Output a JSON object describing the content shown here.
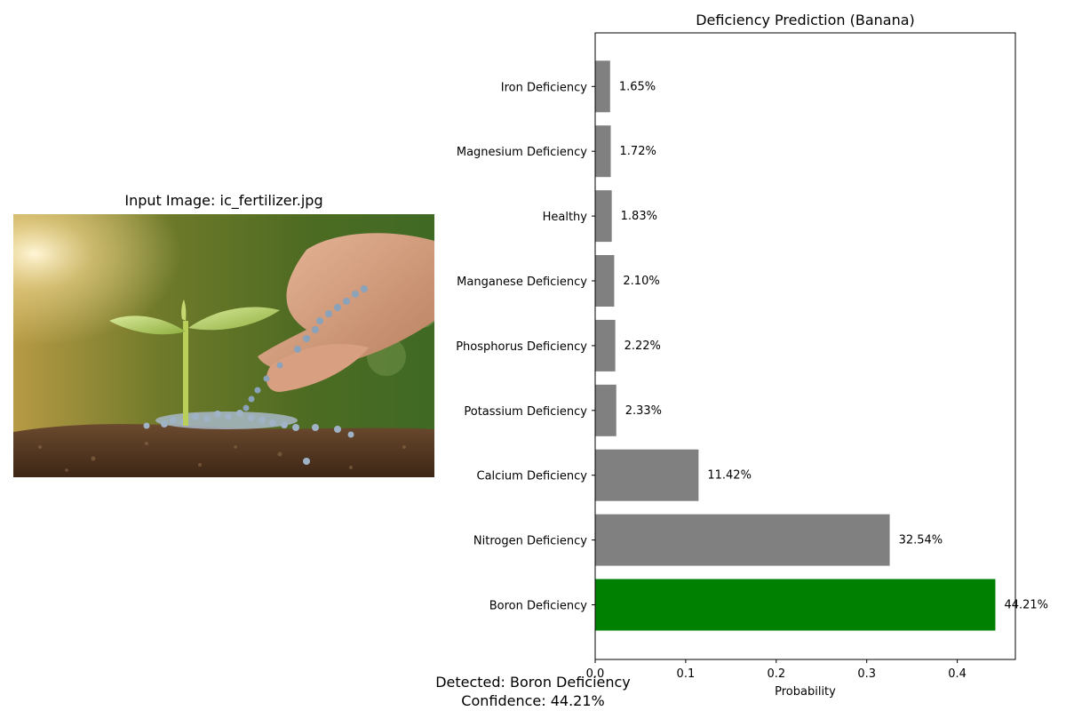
{
  "left_panel": {
    "title": "Input Image: ic_fertilizer.jpg",
    "image_description_icon": "seedling-fertilizer-photo"
  },
  "footer": {
    "detected": "Detected: Boron Deficiency",
    "confidence": "Confidence: 44.21%"
  },
  "chart_data": {
    "type": "bar",
    "orientation": "horizontal",
    "title": "Deficiency Prediction (Banana)",
    "xlabel": "Probability",
    "ylabel": "",
    "xlim": [
      0,
      0.4642
    ],
    "xticks": [
      "0.0",
      "0.1",
      "0.2",
      "0.3",
      "0.4"
    ],
    "xtick_values": [
      0,
      0.1,
      0.2,
      0.3,
      0.4
    ],
    "grid": false,
    "categories": [
      "Boron Deficiency",
      "Nitrogen Deficiency",
      "Calcium Deficiency",
      "Potassium Deficiency",
      "Phosphorus Deficiency",
      "Manganese Deficiency",
      "Healthy",
      "Magnesium Deficiency",
      "Iron Deficiency"
    ],
    "values": [
      0.4421,
      0.3254,
      0.1142,
      0.0233,
      0.0222,
      0.021,
      0.0183,
      0.0172,
      0.0165
    ],
    "value_labels": [
      "44.21%",
      "32.54%",
      "11.42%",
      "2.33%",
      "2.22%",
      "2.10%",
      "1.83%",
      "1.72%",
      "1.65%"
    ],
    "colors": [
      "#008000",
      "#808080",
      "#808080",
      "#808080",
      "#808080",
      "#808080",
      "#808080",
      "#808080",
      "#808080"
    ],
    "highlight_color": "#008000",
    "default_color": "#808080"
  }
}
